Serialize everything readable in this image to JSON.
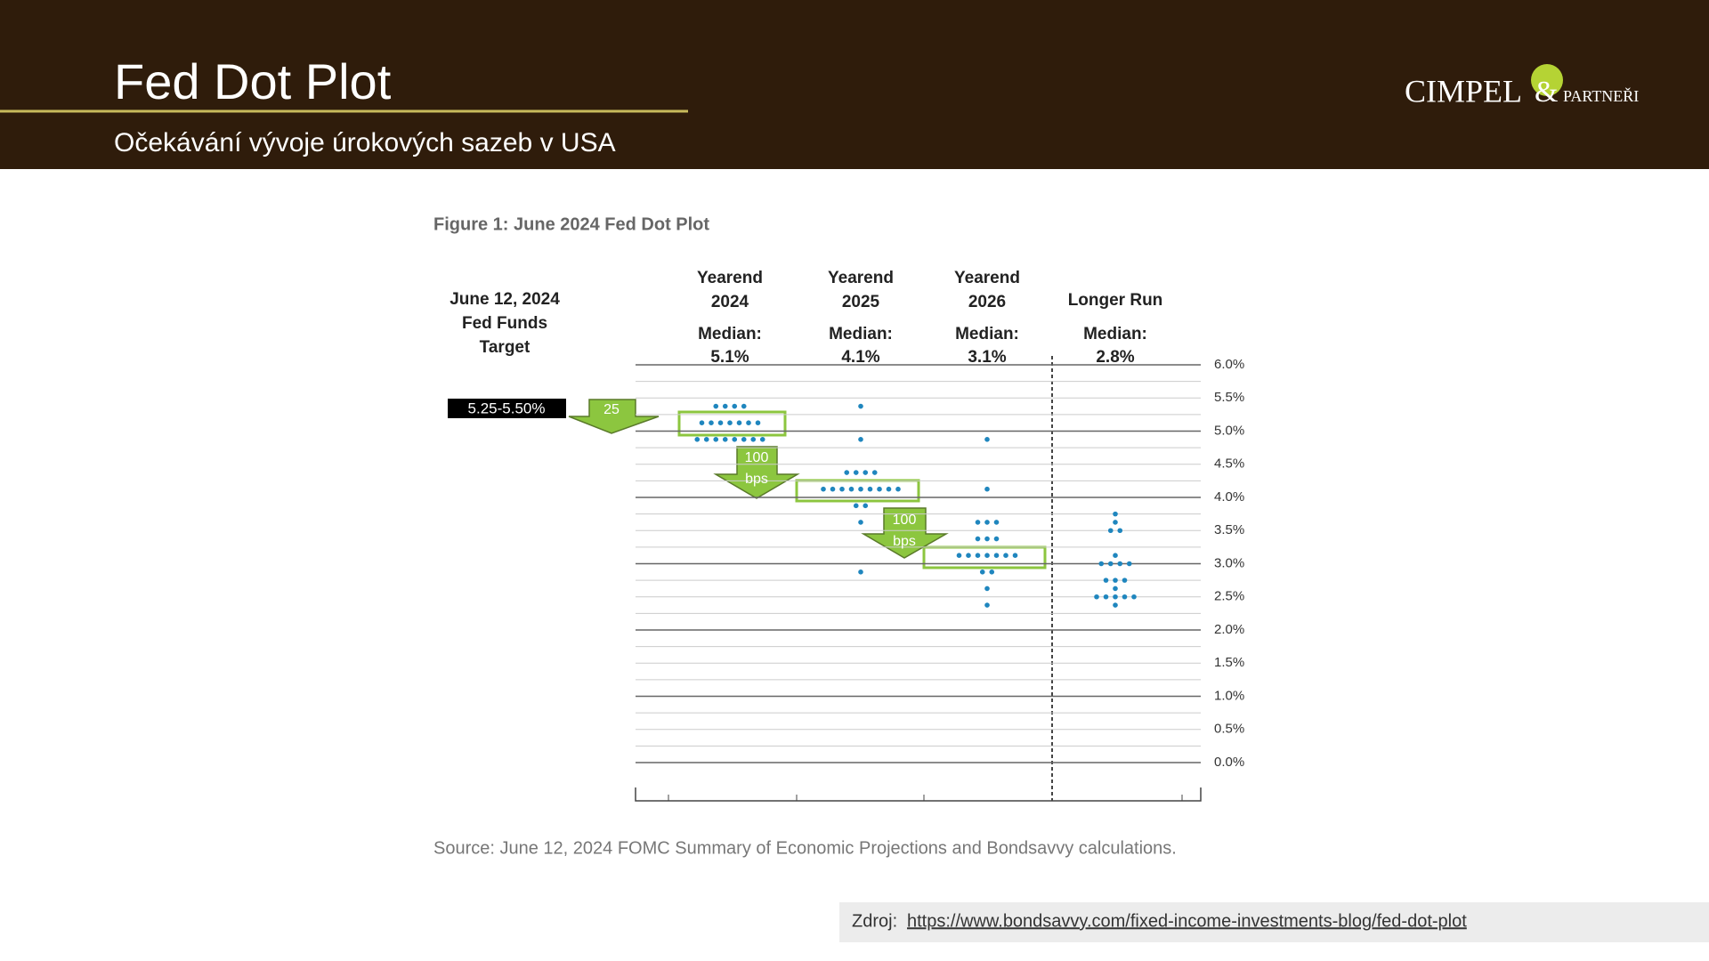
{
  "header": {
    "title": "Fed Dot Plot",
    "subtitle": "Očekávání vývoje úrokových sazeb v USA",
    "logo_main": "CIMPEL",
    "logo_amp": "&",
    "logo_sub": "PARTNEŘI"
  },
  "chart_data": {
    "type": "dot",
    "title": "Figure 1: June 2024 Fed Dot Plot",
    "target_label": [
      "June 12, 2024",
      "Fed Funds",
      "Target"
    ],
    "target_value": "5.25-5.50%",
    "categories": [
      [
        "Yearend",
        "2024"
      ],
      [
        "Yearend",
        "2025"
      ],
      [
        "Yearend",
        "2026"
      ],
      [
        "Longer Run"
      ]
    ],
    "median_label": "Median:",
    "medians": [
      "5.1%",
      "4.1%",
      "3.1%",
      "2.8%"
    ],
    "dots": [
      {
        "levels": [
          5.375,
          5.125,
          4.875
        ],
        "counts": [
          4,
          7,
          8
        ]
      },
      {
        "levels": [
          5.375,
          4.875,
          4.375,
          4.125,
          3.875,
          3.625,
          2.875
        ],
        "counts": [
          1,
          1,
          4,
          9,
          2,
          1,
          1
        ]
      },
      {
        "levels": [
          4.875,
          4.125,
          3.625,
          3.375,
          3.125,
          2.875,
          2.625,
          2.375
        ],
        "counts": [
          1,
          1,
          3,
          3,
          7,
          2,
          1,
          1
        ]
      },
      {
        "levels": [
          3.75,
          3.625,
          3.5,
          3.125,
          3.0,
          2.75,
          2.625,
          2.5,
          2.375
        ],
        "counts": [
          1,
          1,
          2,
          1,
          4,
          3,
          1,
          5,
          1
        ]
      }
    ],
    "color": "#1f86be",
    "arrows": [
      [
        "25"
      ],
      [
        "100",
        "bps"
      ],
      [
        "100",
        "bps"
      ]
    ],
    "ylim": [
      0,
      6
    ],
    "yticks": [
      {
        "value": 0,
        "label": "0.0%"
      },
      {
        "value": 0.5,
        "label": "0.5%"
      },
      {
        "value": 1,
        "label": "1.0%"
      },
      {
        "value": 1.5,
        "label": "1.5%"
      },
      {
        "value": 2,
        "label": "2.0%"
      },
      {
        "value": 2.5,
        "label": "2.5%"
      },
      {
        "value": 3,
        "label": "3.0%"
      },
      {
        "value": 3.5,
        "label": "3.5%"
      },
      {
        "value": 4,
        "label": "4.0%"
      },
      {
        "value": 4.5,
        "label": "4.5%"
      },
      {
        "value": 5,
        "label": "5.0%"
      },
      {
        "value": 5.5,
        "label": "5.5%"
      },
      {
        "value": 6,
        "label": "6.0%"
      }
    ],
    "grid": true,
    "source": "Source: June 12, 2024 FOMC Summary of Economic Projections and Bondsavvy calculations."
  },
  "footer": {
    "label": "Zdroj:",
    "link": "https://www.bondsavvy.com/fixed-income-investments-blog/fed-dot-plot"
  }
}
